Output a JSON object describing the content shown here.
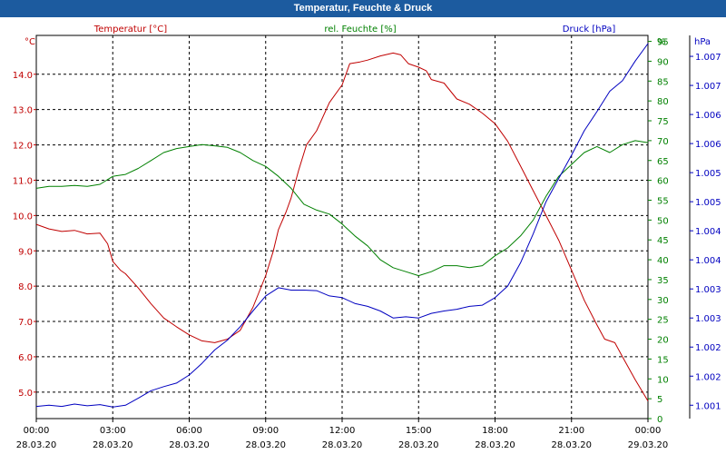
{
  "window": {
    "title": "Temperatur, Feuchte & Druck"
  },
  "colors": {
    "temperature": "#c00000",
    "humidity": "#008000",
    "pressure": "#0000c0"
  },
  "chart_data": {
    "type": "line",
    "title": "Temperatur, Feuchte & Druck",
    "grid": true,
    "x_ticks": [
      {
        "time": "00:00",
        "date": "28.03.20"
      },
      {
        "time": "03:00",
        "date": "28.03.20"
      },
      {
        "time": "06:00",
        "date": "28.03.20"
      },
      {
        "time": "09:00",
        "date": "28.03.20"
      },
      {
        "time": "12:00",
        "date": "28.03.20"
      },
      {
        "time": "15:00",
        "date": "28.03.20"
      },
      {
        "time": "18:00",
        "date": "28.03.20"
      },
      {
        "time": "21:00",
        "date": "28.03.20"
      },
      {
        "time": "00:00",
        "date": "29.03.20"
      }
    ],
    "x_range_hours": [
      0,
      24
    ],
    "axes": {
      "temperature": {
        "label": "Temperatur [°C]",
        "unit": "°C",
        "range": [
          4.25,
          15.1
        ],
        "ticks": [
          {
            "v": 5.0,
            "t": "5.0"
          },
          {
            "v": 6.0,
            "t": "6.0"
          },
          {
            "v": 7.0,
            "t": "7.0"
          },
          {
            "v": 8.0,
            "t": "8.0"
          },
          {
            "v": 9.0,
            "t": "9.0"
          },
          {
            "v": 10.0,
            "t": "10.0"
          },
          {
            "v": 11.0,
            "t": "11.0"
          },
          {
            "v": 12.0,
            "t": "12.0"
          },
          {
            "v": 13.0,
            "t": "13.0"
          },
          {
            "v": 14.0,
            "t": "14.0"
          }
        ]
      },
      "humidity": {
        "label": "rel. Feuchte [%]",
        "unit": "%",
        "range": [
          0,
          96.5
        ],
        "ticks": [
          {
            "v": 0,
            "t": "0"
          },
          {
            "v": 5,
            "t": "5"
          },
          {
            "v": 10,
            "t": "10"
          },
          {
            "v": 15,
            "t": "15"
          },
          {
            "v": 20,
            "t": "20"
          },
          {
            "v": 25,
            "t": "25"
          },
          {
            "v": 30,
            "t": "30"
          },
          {
            "v": 35,
            "t": "35"
          },
          {
            "v": 40,
            "t": "40"
          },
          {
            "v": 45,
            "t": "45"
          },
          {
            "v": 50,
            "t": "50"
          },
          {
            "v": 55,
            "t": "55"
          },
          {
            "v": 60,
            "t": "60"
          },
          {
            "v": 65,
            "t": "65"
          },
          {
            "v": 70,
            "t": "70"
          },
          {
            "v": 75,
            "t": "75"
          },
          {
            "v": 80,
            "t": "80"
          },
          {
            "v": 85,
            "t": "85"
          },
          {
            "v": 90,
            "t": "90"
          },
          {
            "v": 95,
            "t": "95"
          }
        ]
      },
      "pressure": {
        "label": "Druck [hPa]",
        "unit": "hPa",
        "range": [
          1000.77,
          1007.36
        ],
        "ticks": [
          {
            "v": 1001.0,
            "t": "1.001"
          },
          {
            "v": 1001.5,
            "t": "1.002"
          },
          {
            "v": 1002.0,
            "t": "1.002"
          },
          {
            "v": 1002.5,
            "t": "1.003"
          },
          {
            "v": 1003.0,
            "t": "1.003"
          },
          {
            "v": 1003.5,
            "t": "1.004"
          },
          {
            "v": 1004.0,
            "t": "1.004"
          },
          {
            "v": 1004.5,
            "t": "1.005"
          },
          {
            "v": 1005.0,
            "t": "1.005"
          },
          {
            "v": 1005.5,
            "t": "1.006"
          },
          {
            "v": 1006.0,
            "t": "1.006"
          },
          {
            "v": 1006.5,
            "t": "1.007"
          },
          {
            "v": 1007.0,
            "t": "1.007"
          }
        ]
      }
    },
    "series": [
      {
        "name": "Temperatur [°C]",
        "axis": "temperature",
        "points": [
          [
            0,
            9.75
          ],
          [
            0.5,
            9.62
          ],
          [
            1,
            9.55
          ],
          [
            1.5,
            9.58
          ],
          [
            2,
            9.48
          ],
          [
            2.5,
            9.5
          ],
          [
            2.8,
            9.2
          ],
          [
            3,
            8.7
          ],
          [
            3.3,
            8.45
          ],
          [
            3.5,
            8.35
          ],
          [
            4,
            7.95
          ],
          [
            4.5,
            7.5
          ],
          [
            5,
            7.1
          ],
          [
            5.5,
            6.85
          ],
          [
            6,
            6.62
          ],
          [
            6.5,
            6.45
          ],
          [
            7,
            6.4
          ],
          [
            7.5,
            6.5
          ],
          [
            8,
            6.75
          ],
          [
            8.5,
            7.4
          ],
          [
            9,
            8.3
          ],
          [
            9.3,
            9.0
          ],
          [
            9.5,
            9.6
          ],
          [
            9.8,
            10.1
          ],
          [
            10,
            10.5
          ],
          [
            10.3,
            11.3
          ],
          [
            10.6,
            12.0
          ],
          [
            11,
            12.4
          ],
          [
            11.5,
            13.2
          ],
          [
            12,
            13.7
          ],
          [
            12.3,
            14.3
          ],
          [
            12.7,
            14.35
          ],
          [
            13,
            14.4
          ],
          [
            13.5,
            14.52
          ],
          [
            14,
            14.6
          ],
          [
            14.3,
            14.55
          ],
          [
            14.6,
            14.3
          ],
          [
            15,
            14.2
          ],
          [
            15.3,
            14.1
          ],
          [
            15.5,
            13.85
          ],
          [
            16,
            13.75
          ],
          [
            16.5,
            13.3
          ],
          [
            17,
            13.15
          ],
          [
            17.5,
            12.9
          ],
          [
            18,
            12.6
          ],
          [
            18.5,
            12.1
          ],
          [
            19,
            11.4
          ],
          [
            19.5,
            10.7
          ],
          [
            20,
            10.0
          ],
          [
            20.5,
            9.3
          ],
          [
            21,
            8.45
          ],
          [
            21.5,
            7.6
          ],
          [
            22,
            6.9
          ],
          [
            22.3,
            6.5
          ],
          [
            22.7,
            6.4
          ],
          [
            23,
            6.0
          ],
          [
            23.5,
            5.35
          ],
          [
            24,
            4.75
          ]
        ]
      },
      {
        "name": "rel. Feuchte [%]",
        "axis": "humidity",
        "points": [
          [
            0,
            58
          ],
          [
            0.5,
            58.5
          ],
          [
            1,
            58.5
          ],
          [
            1.5,
            58.7
          ],
          [
            2,
            58.5
          ],
          [
            2.5,
            59
          ],
          [
            3,
            61
          ],
          [
            3.5,
            61.5
          ],
          [
            4,
            63
          ],
          [
            4.5,
            65
          ],
          [
            5,
            67
          ],
          [
            5.5,
            68
          ],
          [
            6,
            68.5
          ],
          [
            6.5,
            69
          ],
          [
            7,
            68.7
          ],
          [
            7.5,
            68.3
          ],
          [
            8,
            67
          ],
          [
            8.5,
            65
          ],
          [
            9,
            63.5
          ],
          [
            9.5,
            61
          ],
          [
            10,
            58
          ],
          [
            10.5,
            54
          ],
          [
            11,
            52.5
          ],
          [
            11.5,
            51.5
          ],
          [
            12,
            49
          ],
          [
            12.5,
            46
          ],
          [
            13,
            43.5
          ],
          [
            13.5,
            40
          ],
          [
            14,
            38
          ],
          [
            14.5,
            37
          ],
          [
            15,
            36
          ],
          [
            15.5,
            37
          ],
          [
            16,
            38.5
          ],
          [
            16.5,
            38.5
          ],
          [
            17,
            38
          ],
          [
            17.5,
            38.5
          ],
          [
            18,
            41
          ],
          [
            18.5,
            43
          ],
          [
            19,
            46
          ],
          [
            19.5,
            50
          ],
          [
            20,
            56
          ],
          [
            20.5,
            61
          ],
          [
            21,
            64
          ],
          [
            21.5,
            67
          ],
          [
            22,
            68.5
          ],
          [
            22.5,
            67
          ],
          [
            23,
            69
          ],
          [
            23.5,
            70
          ],
          [
            24,
            69.5
          ]
        ]
      },
      {
        "name": "Druck [hPa]",
        "axis": "pressure",
        "points": [
          [
            0,
            1000.98
          ],
          [
            0.5,
            1001.0
          ],
          [
            1,
            1000.98
          ],
          [
            1.5,
            1001.02
          ],
          [
            2,
            1000.99
          ],
          [
            2.5,
            1001.01
          ],
          [
            3,
            1000.97
          ],
          [
            3.5,
            1001.0
          ],
          [
            4,
            1001.12
          ],
          [
            4.5,
            1001.25
          ],
          [
            5,
            1001.32
          ],
          [
            5.5,
            1001.38
          ],
          [
            6,
            1001.52
          ],
          [
            6.5,
            1001.72
          ],
          [
            7,
            1001.95
          ],
          [
            7.5,
            1002.12
          ],
          [
            8,
            1002.35
          ],
          [
            8.5,
            1002.62
          ],
          [
            9,
            1002.88
          ],
          [
            9.5,
            1003.02
          ],
          [
            10,
            1002.98
          ],
          [
            10.5,
            1002.98
          ],
          [
            11,
            1002.97
          ],
          [
            11.5,
            1002.88
          ],
          [
            12,
            1002.85
          ],
          [
            12.5,
            1002.75
          ],
          [
            13,
            1002.7
          ],
          [
            13.5,
            1002.62
          ],
          [
            14,
            1002.5
          ],
          [
            14.5,
            1002.52
          ],
          [
            15,
            1002.5
          ],
          [
            15.5,
            1002.58
          ],
          [
            16,
            1002.62
          ],
          [
            16.5,
            1002.65
          ],
          [
            17,
            1002.7
          ],
          [
            17.5,
            1002.72
          ],
          [
            18,
            1002.85
          ],
          [
            18.5,
            1003.05
          ],
          [
            19,
            1003.45
          ],
          [
            19.5,
            1003.95
          ],
          [
            20,
            1004.5
          ],
          [
            20.5,
            1004.9
          ],
          [
            21,
            1005.3
          ],
          [
            21.5,
            1005.72
          ],
          [
            22,
            1006.05
          ],
          [
            22.5,
            1006.4
          ],
          [
            23,
            1006.58
          ],
          [
            23.5,
            1006.92
          ],
          [
            24,
            1007.22
          ]
        ]
      }
    ]
  }
}
